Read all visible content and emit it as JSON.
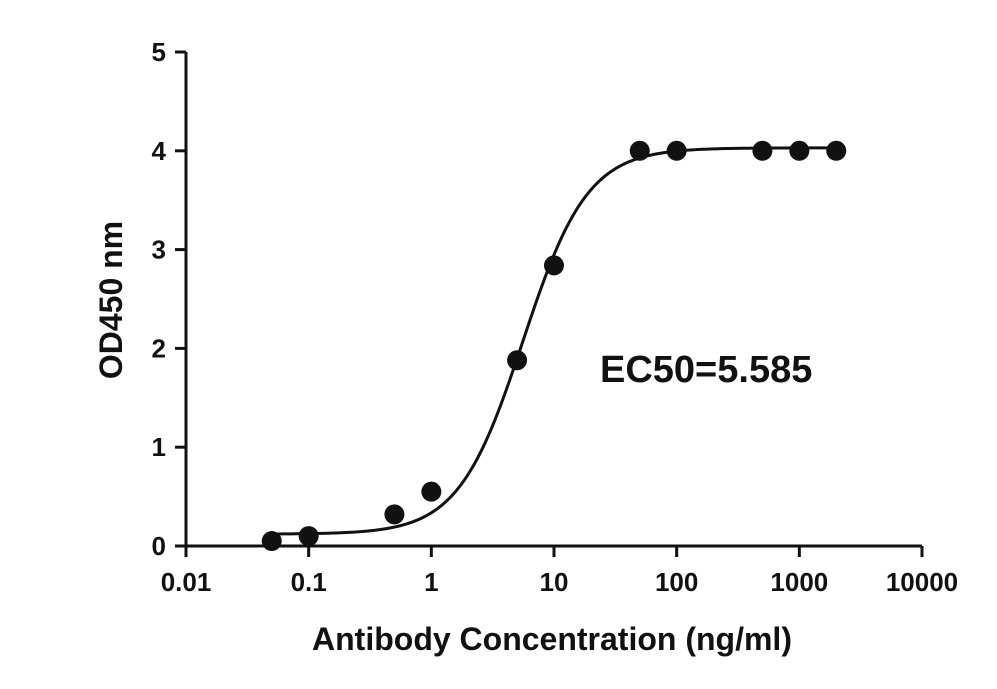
{
  "chart_data": {
    "type": "scatter",
    "title": "",
    "xlabel": "Antibody Concentration (ng/ml)",
    "ylabel": "OD450 nm",
    "x_scale": "log",
    "xlim": [
      0.01,
      10000
    ],
    "ylim": [
      0,
      5
    ],
    "x_ticks": [
      0.01,
      0.1,
      1,
      10,
      100,
      1000,
      10000
    ],
    "x_tick_labels": [
      "0.01",
      "0.1",
      "1",
      "10",
      "100",
      "1000",
      "10000"
    ],
    "y_ticks": [
      0,
      1,
      2,
      3,
      4,
      5
    ],
    "y_tick_labels": [
      "0",
      "1",
      "2",
      "3",
      "4",
      "5"
    ],
    "grid": false,
    "legend": "none",
    "series": [
      {
        "x": [
          0.05,
          0.1,
          0.5,
          1,
          5,
          10,
          50,
          100,
          500,
          1000,
          2000
        ],
        "y": [
          0.05,
          0.1,
          0.32,
          0.55,
          1.88,
          2.84,
          4.0,
          4.0,
          4.0,
          4.0,
          4.0
        ]
      }
    ],
    "fit_curve": {
      "type": "4PL",
      "bottom": 0.12,
      "top": 4.03,
      "ec50": 5.585,
      "hill": 1.65,
      "x_range": [
        0.05,
        2000
      ]
    },
    "annotation": "EC50=5.585",
    "colors": {
      "marker": "#111111",
      "line": "#111111",
      "axis": "#111111"
    }
  }
}
